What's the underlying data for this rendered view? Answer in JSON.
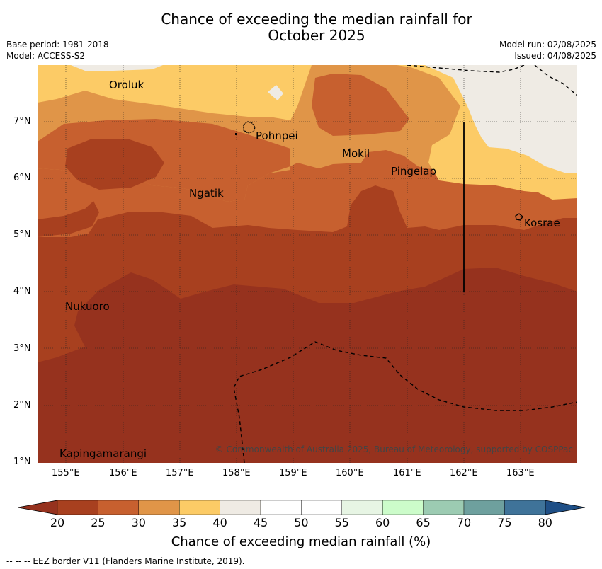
{
  "title_line1": "Chance of exceeding the median rainfall for",
  "title_line2": "October 2025",
  "base_period": "Base period: 1981-2018",
  "model": "Model: ACCESS-S2",
  "model_run": "Model run: 02/08/2025",
  "issued": "Issued: 04/08/2025",
  "x_ticks": [
    "155°E",
    "156°E",
    "157°E",
    "158°E",
    "159°E",
    "160°E",
    "161°E",
    "162°E",
    "163°E"
  ],
  "y_ticks": [
    "7°N",
    "6°N",
    "5°N",
    "4°N",
    "3°N",
    "2°N",
    "1°N"
  ],
  "places": {
    "oroluk": "Oroluk",
    "pohnpei": "Pohnpei",
    "mokil": "Mokil",
    "pingelap": "Pingelap",
    "ngatik": "Ngatik",
    "kosrae": "Kosrae",
    "nukuoro": "Nukuoro",
    "kapinga": "Kapingamarangi"
  },
  "copyright": "© Commonwealth of Australia 2025, Bureau of Meteorology, supported by COSPPac",
  "colorbar": {
    "title": "Chance of exceeding median rainfall (%)",
    "labels": [
      "20",
      "25",
      "30",
      "35",
      "40",
      "45",
      "50",
      "55",
      "60",
      "65",
      "70",
      "75",
      "80"
    ],
    "colors": [
      "#a8401f",
      "#c7602f",
      "#e09548",
      "#fccb66",
      "#efebe4",
      "#ffffff",
      "#ffffff",
      "#e7f5e4",
      "#ccfcca",
      "#9ccbb2",
      "#6ea09e",
      "#3f7399"
    ],
    "under_color": "#96321e",
    "over_color": "#1f4f86"
  },
  "footer": "--  --  -- EEZ border V11 (Flanders Marine Institute, 2019)."
}
